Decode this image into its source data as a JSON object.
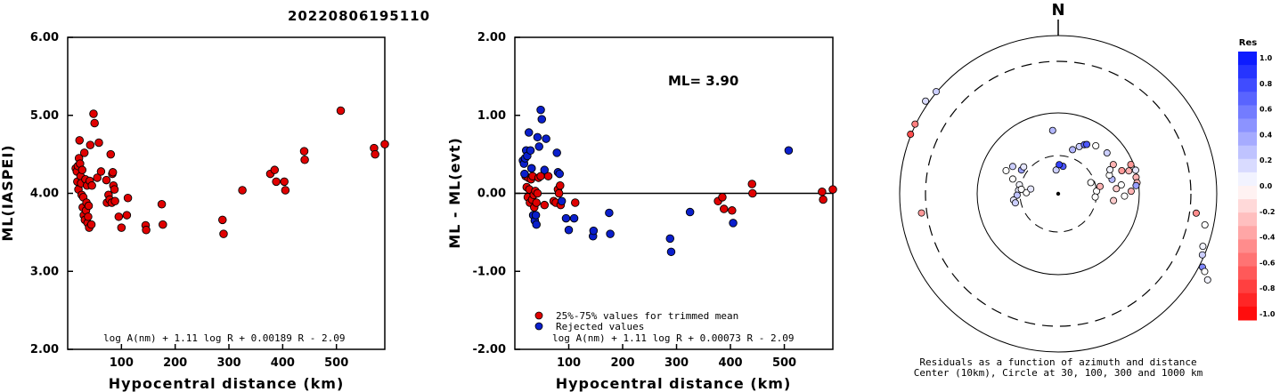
{
  "title": "20220806195110",
  "chart_data": [
    {
      "type": "scatter",
      "ylabel": "ML(IASPEI)",
      "xlabel": "Hypocentral distance (km)",
      "xlim": [
        0,
        590
      ],
      "ylim": [
        2.0,
        6.0
      ],
      "x_ticks": [
        "100",
        "200",
        "300",
        "400",
        "500"
      ],
      "y_ticks": [
        "2.00",
        "3.00",
        "4.00",
        "5.00",
        "6.00"
      ],
      "formula": "log A(nm) + 1.11 log R + 0.00189 R - 2.09",
      "marker_color": "#e00000",
      "points": [
        [
          15,
          4.32
        ],
        [
          17,
          4.28
        ],
        [
          18,
          4.15
        ],
        [
          19,
          4.35
        ],
        [
          20,
          4.05
        ],
        [
          21,
          4.45
        ],
        [
          22,
          4.68
        ],
        [
          23,
          4.38
        ],
        [
          24,
          4.22
        ],
        [
          25,
          4.13
        ],
        [
          26,
          3.98
        ],
        [
          27,
          4.3
        ],
        [
          28,
          3.82
        ],
        [
          29,
          3.95
        ],
        [
          30,
          3.72
        ],
        [
          31,
          4.52
        ],
        [
          32,
          3.66
        ],
        [
          33,
          4.18
        ],
        [
          34,
          3.78
        ],
        [
          35,
          3.88
        ],
        [
          36,
          4.1
        ],
        [
          37,
          3.62
        ],
        [
          38,
          3.7
        ],
        [
          39,
          3.84
        ],
        [
          40,
          3.56
        ],
        [
          41,
          4.16
        ],
        [
          42,
          4.62
        ],
        [
          44,
          3.6
        ],
        [
          45,
          4.1
        ],
        [
          48,
          5.02
        ],
        [
          50,
          4.9
        ],
        [
          55,
          4.2
        ],
        [
          58,
          4.65
        ],
        [
          62,
          4.28
        ],
        [
          72,
          4.17
        ],
        [
          73,
          3.88
        ],
        [
          76,
          3.98
        ],
        [
          78,
          3.92
        ],
        [
          80,
          4.5
        ],
        [
          82,
          3.88
        ],
        [
          83,
          4.25
        ],
        [
          84,
          4.27
        ],
        [
          85,
          4.1
        ],
        [
          87,
          4.05
        ],
        [
          88,
          3.9
        ],
        [
          95,
          3.7
        ],
        [
          100,
          3.56
        ],
        [
          110,
          3.72
        ],
        [
          112,
          3.94
        ],
        [
          145,
          3.59
        ],
        [
          146,
          3.53
        ],
        [
          175,
          3.86
        ],
        [
          177,
          3.6
        ],
        [
          288,
          3.66
        ],
        [
          290,
          3.48
        ],
        [
          325,
          4.04
        ],
        [
          377,
          4.25
        ],
        [
          385,
          4.3
        ],
        [
          388,
          4.15
        ],
        [
          403,
          4.15
        ],
        [
          405,
          4.04
        ],
        [
          440,
          4.54
        ],
        [
          441,
          4.43
        ],
        [
          508,
          5.06
        ],
        [
          570,
          4.58
        ],
        [
          572,
          4.5
        ],
        [
          590,
          4.63
        ]
      ]
    },
    {
      "type": "scatter",
      "ylabel": "ML - ML(evt)",
      "xlabel": "Hypocentral distance (km)",
      "xlim": [
        0,
        590
      ],
      "ylim": [
        -2.0,
        2.0
      ],
      "x_ticks": [
        "100",
        "200",
        "300",
        "400",
        "500"
      ],
      "y_ticks": [
        "-2.00",
        "-1.00",
        "0.00",
        "1.00",
        "2.00"
      ],
      "annotation": "ML= 3.90",
      "formula": "log A(nm) + 1.11 log R + 0.00073 R - 2.09",
      "legend": [
        {
          "label": "25%-75% values for trimmed mean",
          "color": "#e00000"
        },
        {
          "label": "Rejected values",
          "color": "#0a1fcc"
        }
      ],
      "series": [
        {
          "name": "25%-75% values for trimmed mean",
          "color": "#e00000",
          "points": [
            [
              20,
              0.22
            ],
            [
              22,
              0.08
            ],
            [
              24,
              -0.05
            ],
            [
              25,
              0.2
            ],
            [
              27,
              0.05
            ],
            [
              28,
              -0.12
            ],
            [
              30,
              0.18
            ],
            [
              31,
              0.32
            ],
            [
              32,
              -0.08
            ],
            [
              33,
              0.22
            ],
            [
              35,
              -0.02
            ],
            [
              36,
              -0.18
            ],
            [
              38,
              0.03
            ],
            [
              40,
              -0.12
            ],
            [
              42,
              0.0
            ],
            [
              44,
              0.2
            ],
            [
              48,
              0.22
            ],
            [
              55,
              -0.15
            ],
            [
              62,
              0.22
            ],
            [
              72,
              -0.1
            ],
            [
              76,
              -0.12
            ],
            [
              80,
              0.05
            ],
            [
              82,
              0.0
            ],
            [
              84,
              0.1
            ],
            [
              85,
              -0.15
            ],
            [
              112,
              -0.12
            ],
            [
              377,
              -0.1
            ],
            [
              385,
              -0.05
            ],
            [
              388,
              -0.2
            ],
            [
              403,
              -0.22
            ],
            [
              440,
              0.12
            ],
            [
              441,
              0.0
            ],
            [
              570,
              0.02
            ],
            [
              572,
              -0.08
            ],
            [
              590,
              0.05
            ]
          ]
        },
        {
          "name": "Rejected values",
          "color": "#0a1fcc",
          "points": [
            [
              15,
              0.42
            ],
            [
              17,
              0.38
            ],
            [
              18,
              0.25
            ],
            [
              19,
              0.45
            ],
            [
              21,
              0.55
            ],
            [
              23,
              0.48
            ],
            [
              26,
              0.78
            ],
            [
              29,
              0.55
            ],
            [
              31,
              0.32
            ],
            [
              34,
              -0.28
            ],
            [
              37,
              -0.35
            ],
            [
              39,
              -0.28
            ],
            [
              40,
              -0.4
            ],
            [
              42,
              0.72
            ],
            [
              45,
              0.6
            ],
            [
              48,
              1.07
            ],
            [
              50,
              0.95
            ],
            [
              55,
              0.3
            ],
            [
              58,
              0.7
            ],
            [
              78,
              0.52
            ],
            [
              80,
              0.27
            ],
            [
              83,
              0.25
            ],
            [
              87,
              -0.1
            ],
            [
              95,
              -0.32
            ],
            [
              100,
              -0.47
            ],
            [
              110,
              -0.32
            ],
            [
              145,
              -0.55
            ],
            [
              146,
              -0.48
            ],
            [
              175,
              -0.25
            ],
            [
              177,
              -0.52
            ],
            [
              288,
              -0.58
            ],
            [
              290,
              -0.75
            ],
            [
              325,
              -0.24
            ],
            [
              405,
              -0.38
            ],
            [
              508,
              0.55
            ]
          ]
        }
      ]
    }
  ],
  "polar_plot": {
    "north_label": "N",
    "caption_line1": "Residuals as a function of azimuth and distance",
    "caption_line2": "Center (10km), Circle at 30, 100, 300 and 1000 km",
    "stations": [
      [
        310,
        1.2,
        0.2
      ],
      [
        305,
        1.22,
        0.15
      ],
      [
        296,
        1.2,
        -0.5
      ],
      [
        292,
        1.2,
        -0.7
      ],
      [
        262,
        1.04,
        -0.4
      ],
      [
        98,
        1.05,
        -0.45
      ],
      [
        102,
        1.13,
        0.0
      ],
      [
        110,
        1.16,
        0.05
      ],
      [
        113,
        1.18,
        0.2
      ],
      [
        117,
        1.22,
        0.5
      ],
      [
        118,
        1.25,
        0.0
      ],
      [
        120,
        1.3,
        0.05
      ],
      [
        294,
        0.43,
        0.0
      ],
      [
        301,
        0.4,
        0.2
      ],
      [
        303,
        0.33,
        0.4
      ],
      [
        308,
        0.33,
        0.1
      ],
      [
        288,
        0.36,
        0.0
      ],
      [
        283,
        0.3,
        0.05
      ],
      [
        275,
        0.3,
        0.1
      ],
      [
        268,
        0.31,
        0.25
      ],
      [
        262,
        0.34,
        0.1
      ],
      [
        258,
        0.33,
        0.2
      ],
      [
        272,
        0.24,
        0.0
      ],
      [
        280,
        0.21,
        0.1
      ],
      [
        277,
        0.28,
        0.0
      ],
      [
        355,
        0.18,
        0.2
      ],
      [
        10,
        0.21,
        0.7
      ],
      [
        2,
        0.22,
        0.8
      ],
      [
        18,
        0.35,
        0.3
      ],
      [
        24,
        0.39,
        0.2
      ],
      [
        28,
        0.42,
        0.6
      ],
      [
        30,
        0.43,
        0.7
      ],
      [
        38,
        0.46,
        0.0
      ],
      [
        355,
        0.48,
        0.3
      ],
      [
        50,
        0.48,
        0.2
      ],
      [
        62,
        0.47,
        -0.3
      ],
      [
        70,
        0.51,
        -0.4
      ],
      [
        75,
        0.42,
        0.3
      ],
      [
        72,
        0.56,
        -0.3
      ],
      [
        68,
        0.59,
        -0.4
      ],
      [
        73,
        0.61,
        0.1
      ],
      [
        78,
        0.6,
        -0.3
      ],
      [
        82,
        0.6,
        -0.3
      ],
      [
        84,
        0.59,
        0.4
      ],
      [
        88,
        0.55,
        -0.3
      ],
      [
        82,
        0.48,
        0.0
      ],
      [
        70,
        0.41,
        0.0
      ],
      [
        65,
        0.43,
        0.05
      ],
      [
        85,
        0.44,
        -0.2
      ],
      [
        92,
        0.5,
        0.0
      ],
      [
        97,
        0.42,
        -0.2
      ],
      [
        86,
        0.29,
        0.0
      ],
      [
        80,
        0.32,
        -0.3
      ],
      [
        95,
        0.28,
        0.0
      ],
      [
        71,
        0.26,
        0.0
      ]
    ]
  },
  "colorbar": {
    "title": "Res",
    "ticks": [
      "1.0",
      "0.8",
      "0.6",
      "0.4",
      "0.2",
      "0.0",
      "-0.2",
      "-0.4",
      "-0.6",
      "-0.8",
      "-1.0"
    ],
    "colors": {
      "positive": "#0010ff",
      "neutral": "#ffffff",
      "negative": "#ff0000"
    }
  }
}
